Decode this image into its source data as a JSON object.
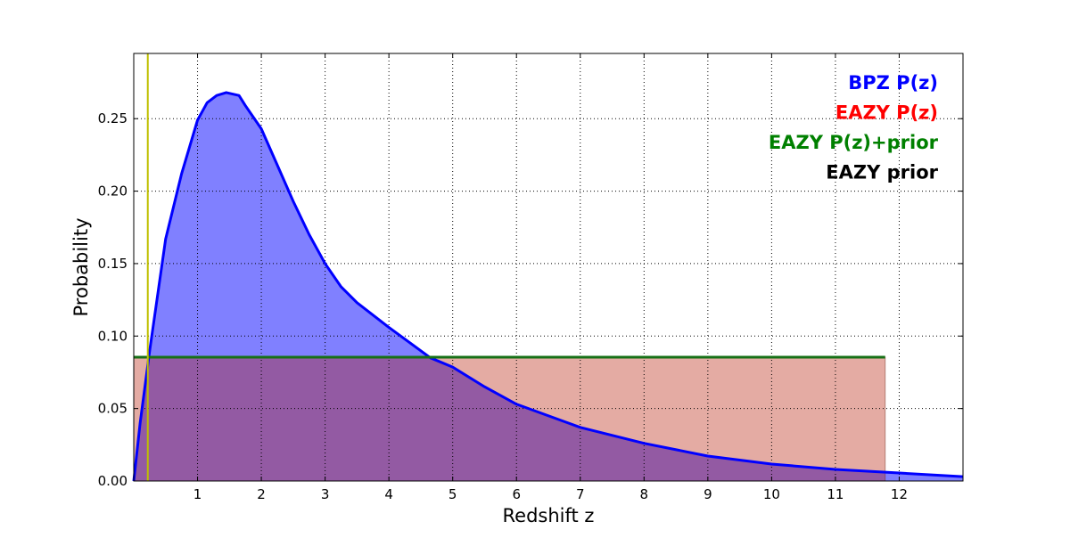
{
  "chart_data": {
    "type": "area",
    "title": "",
    "xlabel": "Redshift z",
    "ylabel": "Probability",
    "xlim": [
      0,
      13
    ],
    "ylim": [
      0,
      0.295
    ],
    "grid": true,
    "legend_position": "top-right",
    "xticks": [
      1,
      2,
      3,
      4,
      5,
      6,
      7,
      8,
      9,
      10,
      11,
      12
    ],
    "xtick_labels": [
      "1",
      "2",
      "3",
      "4",
      "5",
      "6",
      "7",
      "8",
      "9",
      "10",
      "11",
      "12"
    ],
    "yticks": [
      0,
      0.05,
      0.1,
      0.15,
      0.2,
      0.25
    ],
    "ytick_labels": [
      "0.00",
      "0.05",
      "0.10",
      "0.15",
      "0.20",
      "0.25"
    ],
    "legend": [
      {
        "label": "BPZ P(z)",
        "color": "#0000ff"
      },
      {
        "label": "EAZY P(z)",
        "color": "#ff0000"
      },
      {
        "label": "EAZY P(z)+prior",
        "color": "#008000"
      },
      {
        "label": "EAZY prior",
        "color": "#000000"
      }
    ],
    "series": [
      {
        "name": "BPZ P(z)",
        "color": "#0000ff",
        "fill": "#8080ff",
        "x": [
          0,
          0.1,
          0.25,
          0.5,
          0.75,
          1,
          1.15,
          1.3,
          1.45,
          1.55,
          1.65,
          1.75,
          2,
          2.25,
          2.5,
          2.75,
          3,
          3.25,
          3.5,
          4,
          4.65,
          5,
          5.5,
          6,
          7,
          8,
          9,
          10,
          11,
          12,
          13
        ],
        "y": [
          0,
          0.04,
          0.09,
          0.167,
          0.212,
          0.249,
          0.261,
          0.266,
          0.268,
          0.267,
          0.266,
          0.259,
          0.243,
          0.218,
          0.193,
          0.17,
          0.15,
          0.134,
          0.123,
          0.106,
          0.085,
          0.0786,
          0.065,
          0.053,
          0.037,
          0.026,
          0.0172,
          0.0117,
          0.008,
          0.0055,
          0.003
        ]
      },
      {
        "name": "EAZY P(z)",
        "color": "#b41600",
        "x": [
          0,
          11.78
        ],
        "y": [
          0.0854,
          0.0854
        ]
      },
      {
        "name": "EAZY P(z)+prior",
        "color": "#167016",
        "x": [
          0,
          11.78
        ],
        "y": [
          0.0854,
          0.0854
        ]
      }
    ],
    "vline": {
      "x": 0.22,
      "color": "#bfbf00"
    }
  }
}
